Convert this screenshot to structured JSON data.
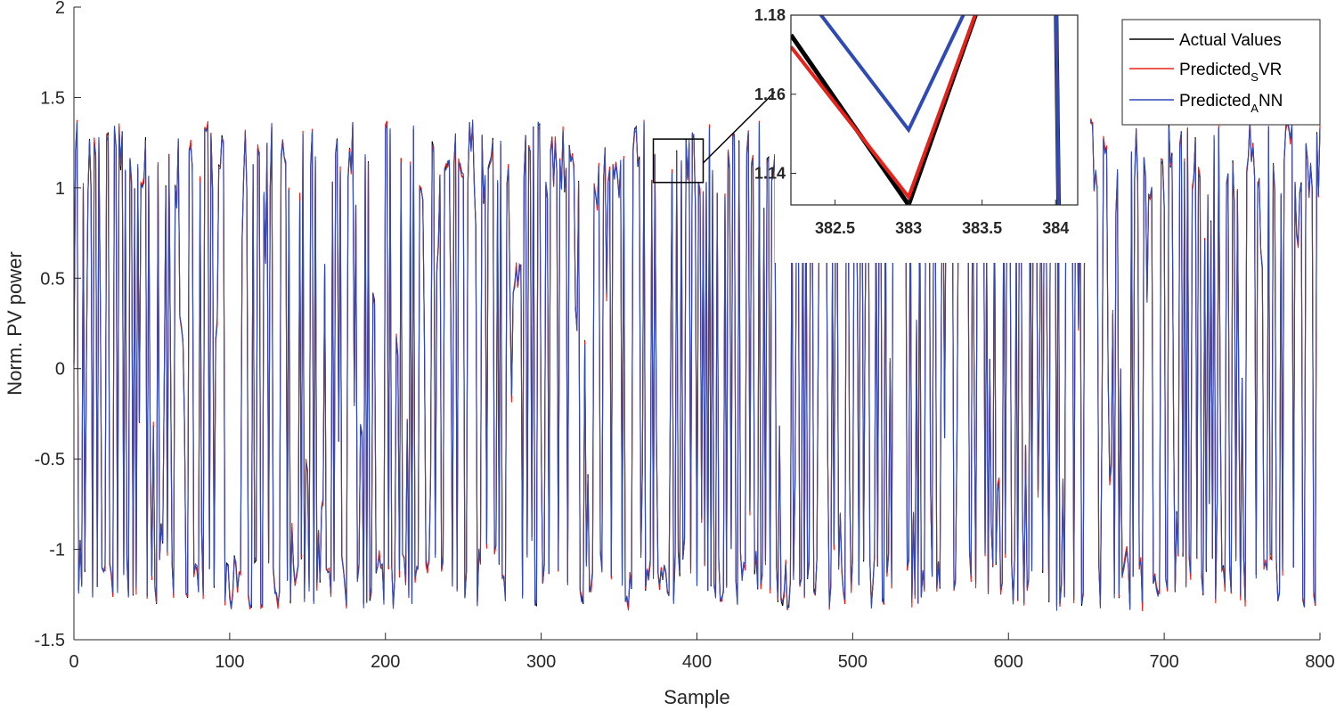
{
  "chart_data": {
    "type": "line",
    "xlabel": "Sample",
    "ylabel": "Norm. PV power",
    "xlim": [
      0,
      800
    ],
    "ylim": [
      -1.5,
      2
    ],
    "xticks": [
      "0",
      "100",
      "200",
      "300",
      "400",
      "500",
      "600",
      "700",
      "800"
    ],
    "yticks": [
      "-1.5",
      "-1",
      "-0.5",
      "0",
      "0.5",
      "1",
      "1.5",
      "2"
    ],
    "grid": false,
    "legend_position": "top-right",
    "legend": [
      {
        "main": "Actual Values",
        "sub": "",
        "tail": ""
      },
      {
        "main": "Predicted",
        "sub": "S",
        "tail": "VR"
      },
      {
        "main": "Predicted",
        "sub": "A",
        "tail": "NN"
      }
    ],
    "series": [
      {
        "id": "actual",
        "color": "#000000"
      },
      {
        "id": "svr",
        "color": "#e8221a"
      },
      {
        "id": "ann",
        "color": "#2f4ab5"
      }
    ],
    "signal_description": "~800 samples oscillating rapidly between about -1.3 and 1.35; three nearly identical series",
    "value_range": [
      -1.32,
      1.36
    ],
    "zoom_region": {
      "xlim": [
        372,
        404
      ],
      "ylim": [
        1.03,
        1.27
      ]
    },
    "inset": {
      "xlim": [
        382.2,
        384.15
      ],
      "ylim": [
        1.132,
        1.18
      ],
      "xticks": [
        "382.5",
        "383",
        "383.5",
        "384"
      ],
      "yticks": [
        "1.14",
        "1.16",
        "1.18"
      ],
      "actual": {
        "x": [
          382.2,
          383.0,
          383.55,
          384.0,
          384.02
        ],
        "y": [
          1.175,
          1.132,
          1.19,
          1.19,
          1.132
        ]
      },
      "svr": {
        "x": [
          382.2,
          383.0,
          383.55,
          384.0,
          384.02
        ],
        "y": [
          1.172,
          1.134,
          1.19,
          1.19,
          1.132
        ]
      },
      "ann": {
        "x": [
          382.2,
          383.0,
          383.5,
          384.0,
          384.02
        ],
        "y": [
          1.19,
          1.151,
          1.19,
          1.19,
          1.132
        ]
      }
    }
  }
}
